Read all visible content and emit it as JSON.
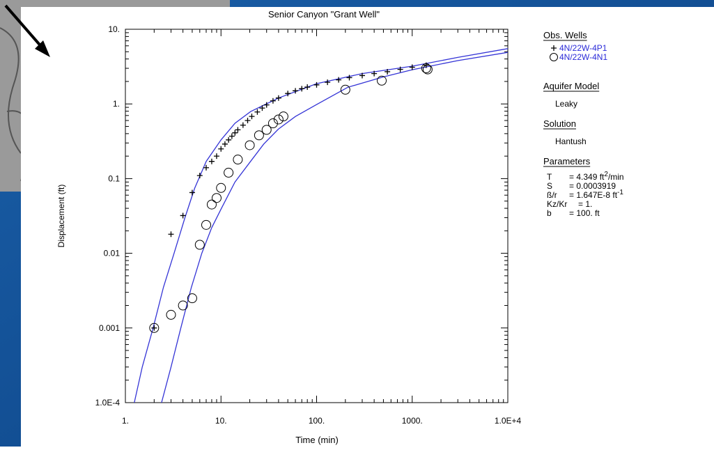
{
  "chart_data": {
    "type": "scatter",
    "title": "Senior Canyon \"Grant Well\"",
    "x_label": "Time (min)",
    "y_label": "Displacement (ft)",
    "log_x": true,
    "log_y": true,
    "xlim": [
      1,
      10000
    ],
    "ylim": [
      0.0001,
      10
    ],
    "xticks": [
      {
        "value": 1,
        "label": "1."
      },
      {
        "value": 10,
        "label": "10."
      },
      {
        "value": 100,
        "label": "100."
      },
      {
        "value": 1000,
        "label": "1000."
      },
      {
        "value": 10000,
        "label": "1.0E+4"
      }
    ],
    "yticks": [
      {
        "value": 0.0001,
        "label": "1.0E-4"
      },
      0.001,
      0.01,
      0.1,
      {
        "value": 1,
        "label": "1."
      },
      {
        "value": 10,
        "label": "10."
      }
    ],
    "legend_title": "Obs. Wells",
    "series": [
      {
        "name": "4N/22W-4P1",
        "marker": "plus",
        "color": "#000000",
        "label_color": "#2a2ad8",
        "x": [
          2,
          3,
          4,
          5,
          6,
          7,
          8,
          9,
          10,
          11,
          12,
          13,
          14,
          15,
          17,
          19,
          21,
          24,
          27,
          30,
          35,
          40,
          50,
          60,
          70,
          80,
          100,
          130,
          170,
          220,
          300,
          400,
          550,
          750,
          1000,
          1400
        ],
        "values": [
          0.001,
          0.018,
          0.032,
          0.065,
          0.11,
          0.14,
          0.17,
          0.2,
          0.25,
          0.29,
          0.33,
          0.37,
          0.41,
          0.45,
          0.52,
          0.6,
          0.68,
          0.78,
          0.88,
          0.97,
          1.1,
          1.2,
          1.38,
          1.5,
          1.6,
          1.68,
          1.8,
          1.95,
          2.1,
          2.25,
          2.4,
          2.55,
          2.7,
          2.9,
          3.1,
          3.3
        ]
      },
      {
        "name": "4N/22W-4N1",
        "marker": "circle",
        "color": "#000000",
        "label_color": "#2a2ad8",
        "x": [
          2,
          3,
          4,
          5,
          6,
          7,
          8,
          9,
          10,
          12,
          15,
          20,
          25,
          30,
          35,
          40,
          45,
          200,
          480,
          1400,
          1450
        ],
        "values": [
          0.001,
          0.0015,
          0.002,
          0.0025,
          0.013,
          0.024,
          0.045,
          0.055,
          0.075,
          0.12,
          0.18,
          0.28,
          0.38,
          0.45,
          0.55,
          0.62,
          0.68,
          1.55,
          2.05,
          3.0,
          2.9
        ]
      }
    ],
    "curves": [
      {
        "color": "#3434d6",
        "x": [
          1.24,
          1.5,
          1.95,
          2.5,
          3.23,
          4.2,
          5.3,
          7,
          10,
          14,
          20.4,
          40,
          100,
          300,
          1000,
          3000,
          10000
        ],
        "values": [
          0.0001,
          0.0003,
          0.001,
          0.0035,
          0.01,
          0.03,
          0.074,
          0.17,
          0.33,
          0.55,
          0.79,
          1.2,
          1.87,
          2.55,
          3.2,
          4.2,
          5.5
        ]
      },
      {
        "color": "#3434d6",
        "x": [
          2.39,
          3,
          3.8,
          4.9,
          6.3,
          8,
          10,
          14,
          20.4,
          28,
          39.8,
          60,
          100,
          212,
          500,
          1000,
          3000,
          10000
        ],
        "values": [
          0.0001,
          0.0003,
          0.001,
          0.0035,
          0.01,
          0.022,
          0.039,
          0.09,
          0.17,
          0.29,
          0.46,
          0.68,
          0.98,
          1.67,
          2.3,
          2.87,
          3.8,
          4.9
        ]
      }
    ],
    "panel": [
      {
        "heading": "Aquifer Model",
        "text": "Leaky"
      },
      {
        "heading": "Solution",
        "text": "Hantush"
      }
    ],
    "parameters_heading": "Parameters",
    "parameters": [
      {
        "name": "T",
        "value": "= 4.349 ft",
        "sup": "2",
        "rest": "/min"
      },
      {
        "name": "S",
        "value": "= 0.0003919"
      },
      {
        "name": "ß/r",
        "value": "= 1.647E-8 ft",
        "sup": "-1"
      },
      {
        "name": "Kz/Kr",
        "value": "= 1."
      },
      {
        "name": "b",
        "value": "= 100. ft"
      }
    ]
  }
}
